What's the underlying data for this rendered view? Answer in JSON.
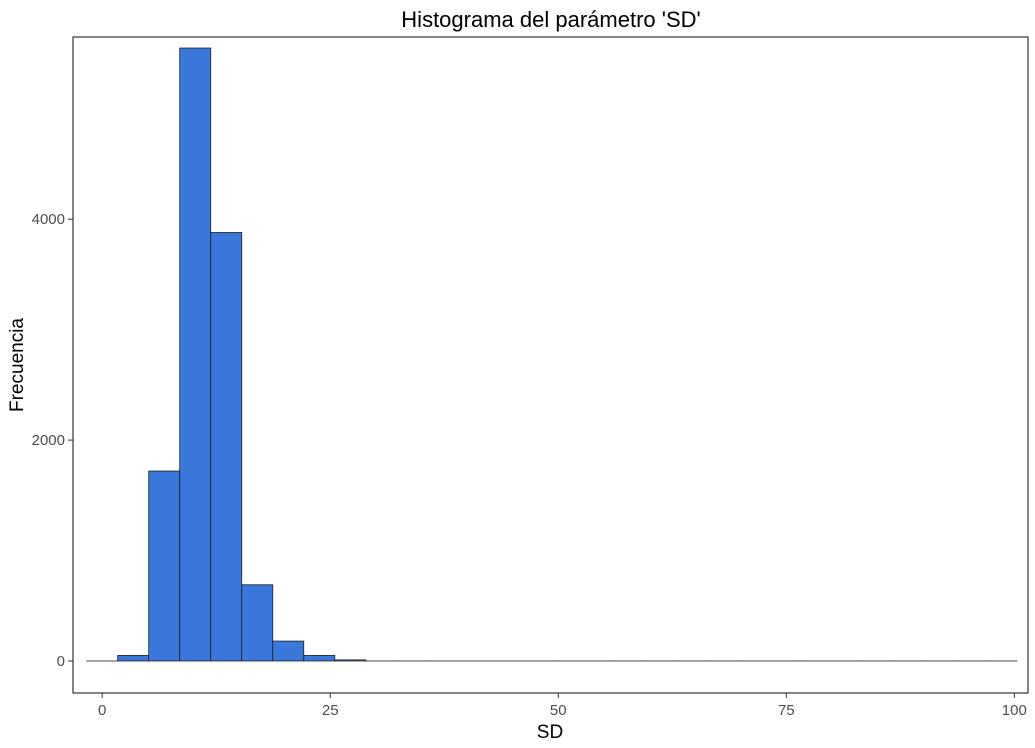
{
  "chart_data": {
    "type": "bar",
    "title": "Histograma del parámetro 'SD'",
    "xlabel": "SD",
    "ylabel": "Frecuencia",
    "xlim": [
      -3.2,
      101.5
    ],
    "ylim": [
      -290,
      5650
    ],
    "x_ticks": [
      0,
      25,
      50,
      75,
      100
    ],
    "y_ticks": [
      0,
      2000,
      4000
    ],
    "bin_width": 3.4,
    "bin_start": -1.7,
    "bins": 30,
    "counts": [
      0,
      50,
      1720,
      5550,
      3880,
      690,
      180,
      50,
      10,
      0,
      0,
      0,
      0,
      0,
      0,
      0,
      0,
      0,
      0,
      0,
      0,
      0,
      0,
      0,
      0,
      0,
      0,
      0,
      0,
      0
    ],
    "grid": false,
    "legend": "none",
    "bar_fill": "#3a78dc",
    "bar_stroke": "#1f1f1f"
  }
}
